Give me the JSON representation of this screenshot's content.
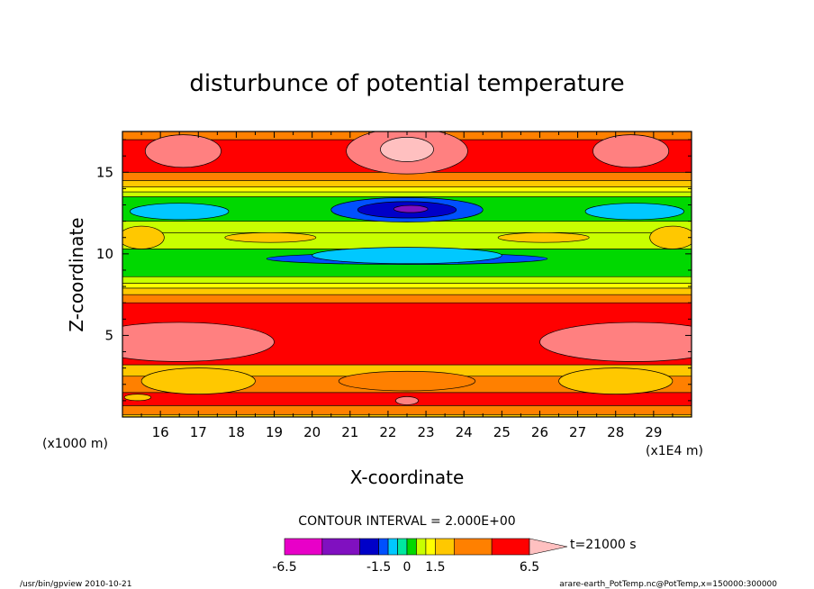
{
  "chart_data": {
    "type": "heatmap",
    "title": "disturbunce of potential temperature",
    "xlabel": "X-coordinate",
    "ylabel": "Z-coordinate",
    "x_unit": "(x1E4 m)",
    "y_unit": "(x1000 m)",
    "xlim": [
      15,
      30
    ],
    "ylim": [
      0,
      17.5
    ],
    "x_ticks": [
      "16",
      "17",
      "18",
      "19",
      "20",
      "21",
      "22",
      "23",
      "24",
      "25",
      "26",
      "27",
      "28",
      "29"
    ],
    "y_ticks": [
      "5",
      "10",
      "15"
    ],
    "contour_interval": "CONTOUR INTERVAL = 2.000E+00",
    "time_label": "t=21000 s",
    "colorbar_labels": [
      "-6.5",
      "-1.5",
      "0",
      "1.5",
      "6.5"
    ],
    "levels": [
      -6.5,
      -4.5,
      -2.5,
      -1.5,
      -1.0,
      -0.5,
      0.0,
      0.5,
      1.0,
      1.5,
      2.5,
      4.5,
      6.5
    ],
    "colors": [
      "#e800c8",
      "#8010c0",
      "#0000c8",
      "#0050ff",
      "#00c8ff",
      "#00e8a0",
      "#00d800",
      "#c8ff00",
      "#ffff00",
      "#ffc800",
      "#ff8000",
      "#ff0000",
      "#ff8080",
      "#ffc0c0"
    ],
    "bands": [
      {
        "z0": 0.0,
        "z1": 0.15,
        "value": 1.2
      },
      {
        "z0": 0.15,
        "z1": 0.7,
        "value": 2.0
      },
      {
        "z0": 0.7,
        "z1": 1.5,
        "value": 3.0
      },
      {
        "z0": 1.5,
        "z1": 2.5,
        "value": 2.0
      },
      {
        "z0": 2.5,
        "z1": 3.2,
        "value": 1.2
      },
      {
        "z0": 3.2,
        "z1": 7.0,
        "value": 3.5
      },
      {
        "z0": 7.0,
        "z1": 7.5,
        "value": 2.0
      },
      {
        "z0": 7.5,
        "z1": 7.9,
        "value": 1.2
      },
      {
        "z0": 7.9,
        "z1": 8.2,
        "value": 0.7
      },
      {
        "z0": 8.2,
        "z1": 8.6,
        "value": 0.2
      },
      {
        "z0": 8.6,
        "z1": 10.3,
        "value": -0.3
      },
      {
        "z0": 10.3,
        "z1": 11.3,
        "value": 0.2
      },
      {
        "z0": 11.3,
        "z1": 12.0,
        "value": 0.2
      },
      {
        "z0": 12.0,
        "z1": 13.5,
        "value": -0.3
      },
      {
        "z0": 13.5,
        "z1": 13.8,
        "value": 0.2
      },
      {
        "z0": 13.8,
        "z1": 14.1,
        "value": 0.7
      },
      {
        "z0": 14.1,
        "z1": 14.5,
        "value": 1.2
      },
      {
        "z0": 14.5,
        "z1": 15.0,
        "value": 2.0
      },
      {
        "z0": 15.0,
        "z1": 17.0,
        "value": 3.5
      },
      {
        "z0": 17.0,
        "z1": 17.5,
        "value": 2.0
      }
    ],
    "blobs": [
      {
        "cx": 16.6,
        "cz": 16.3,
        "rx": 1.0,
        "rz": 1.0,
        "value": 5.5
      },
      {
        "cx": 22.5,
        "cz": 16.3,
        "rx": 1.6,
        "rz": 1.4,
        "value": 5.5
      },
      {
        "cx": 22.5,
        "cz": 16.4,
        "rx": 0.7,
        "rz": 0.75,
        "value": 7.0
      },
      {
        "cx": 28.4,
        "cz": 16.3,
        "rx": 1.0,
        "rz": 1.0,
        "value": 5.5
      },
      {
        "cx": 16.5,
        "cz": 12.6,
        "rx": 1.3,
        "rz": 0.5,
        "value": -1.2
      },
      {
        "cx": 22.5,
        "cz": 12.7,
        "rx": 2.0,
        "rz": 0.75,
        "value": -2.0
      },
      {
        "cx": 22.5,
        "cz": 12.7,
        "rx": 1.3,
        "rz": 0.5,
        "value": -3.5
      },
      {
        "cx": 22.6,
        "cz": 12.75,
        "rx": 0.45,
        "rz": 0.22,
        "value": -5.5
      },
      {
        "cx": 28.5,
        "cz": 12.6,
        "rx": 1.3,
        "rz": 0.5,
        "value": -1.2
      },
      {
        "cx": 22.5,
        "cz": 9.7,
        "rx": 3.7,
        "rz": 0.35,
        "value": -2.0
      },
      {
        "cx": 22.5,
        "cz": 9.9,
        "rx": 2.5,
        "rz": 0.5,
        "value": -1.2
      },
      {
        "cx": 18.9,
        "cz": 11.0,
        "rx": 1.2,
        "rz": 0.3,
        "value": 1.2
      },
      {
        "cx": 26.1,
        "cz": 11.0,
        "rx": 1.2,
        "rz": 0.3,
        "value": 1.2
      },
      {
        "cx": 15.5,
        "cz": 11.0,
        "rx": 0.6,
        "rz": 0.7,
        "value": 1.2
      },
      {
        "cx": 29.5,
        "cz": 11.0,
        "rx": 0.6,
        "rz": 0.7,
        "value": 1.2
      },
      {
        "cx": 16.5,
        "cz": 4.6,
        "rx": 2.5,
        "rz": 1.2,
        "value": 5.5
      },
      {
        "cx": 28.5,
        "cz": 4.6,
        "rx": 2.5,
        "rz": 1.2,
        "value": 5.5
      },
      {
        "cx": 17.0,
        "cz": 2.2,
        "rx": 1.5,
        "rz": 0.8,
        "value": 1.2
      },
      {
        "cx": 28.0,
        "cz": 2.2,
        "rx": 1.5,
        "rz": 0.8,
        "value": 1.2
      },
      {
        "cx": 22.5,
        "cz": 2.2,
        "rx": 1.8,
        "rz": 0.6,
        "value": 2.0
      },
      {
        "cx": 22.5,
        "cz": 1.0,
        "rx": 0.3,
        "rz": 0.25,
        "value": 5.5
      },
      {
        "cx": 15.4,
        "cz": 1.2,
        "rx": 0.35,
        "rz": 0.2,
        "value": 1.2
      }
    ]
  },
  "footer": {
    "left": "/usr/bin/gpview   2010-10-21",
    "right": "arare-earth_PotTemp.nc@PotTemp,x=150000:300000"
  }
}
